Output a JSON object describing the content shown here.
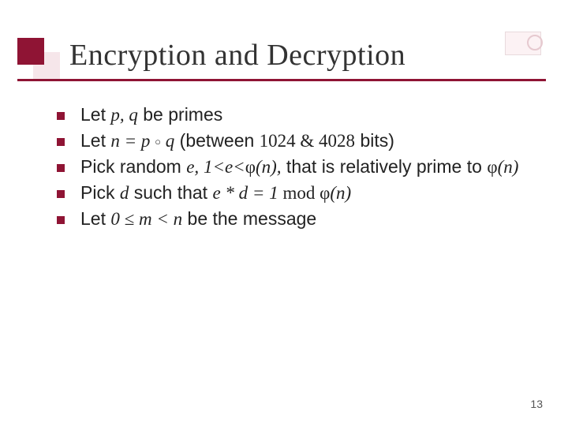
{
  "title": "Encryption and Decryption",
  "bullets": {
    "b1_pre": "Let ",
    "b1_pq": "p, q",
    "b1_post": " be primes",
    "b2_pre": "Let ",
    "b2_eq": "n = p ",
    "b2_ring": "○",
    "b2_q": " q",
    "b2_post1": " (between ",
    "b2_nums": "1024  & 4028",
    "b2_post2": " bits)",
    "b3_pre": "Pick random ",
    "b3_e": "e,",
    "b3_range": " 1<e<",
    "b3_phi": "φ",
    "b3_paren": "(n),",
    "b3_post1": " that is relatively prime to ",
    "b3_phi2": "φ",
    "b3_paren2": "(n)",
    "b4_pre": "Pick ",
    "b4_d": "d",
    "b4_post1": " such that ",
    "b4_ed": "e * d = 1 ",
    "b4_mod": "mod ",
    "b4_phi": "φ",
    "b4_paren": "(n)",
    "b5_pre": "Let ",
    "b5_range": "0 ≤ m < n",
    "b5_post": " be the message"
  },
  "pageNumber": "13",
  "colors": {
    "accent": "#8f1434",
    "accentLight": "#f6e6ea",
    "text": "#222222"
  }
}
